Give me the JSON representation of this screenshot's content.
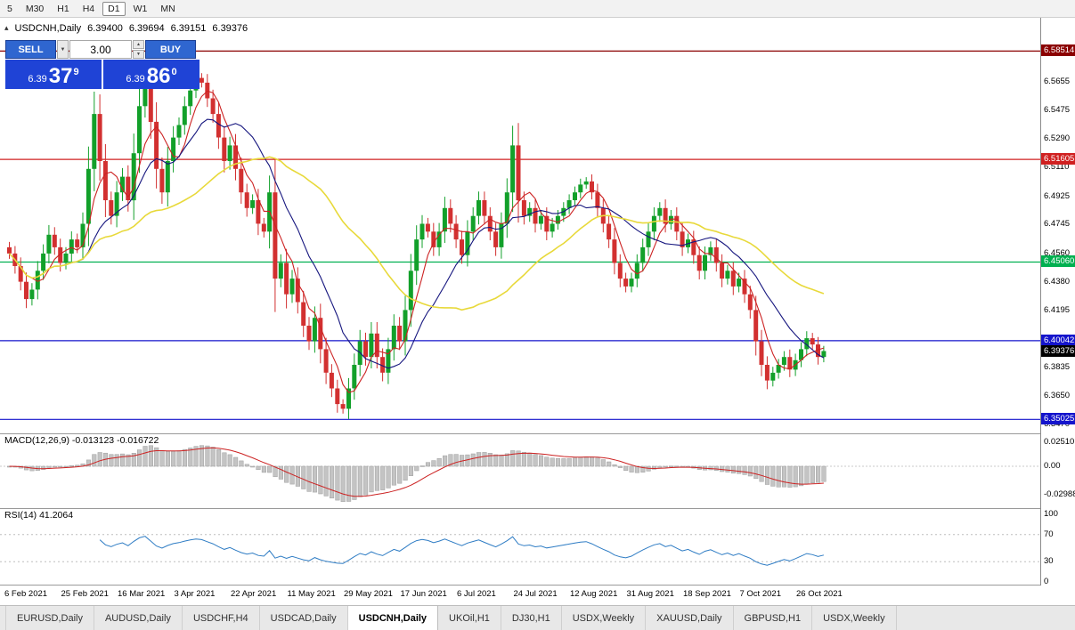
{
  "icons": {
    "collapse": "▴",
    "dropdown": "▼",
    "spin_up": "▲",
    "spin_down": "▼"
  },
  "toolbar": {
    "buttons": [
      "5",
      "M30",
      "H1",
      "H4",
      "D1",
      "W1",
      "MN"
    ],
    "active": "D1"
  },
  "chart": {
    "info": {
      "symbol": "USDCNH,Daily",
      "open": "6.39400",
      "high": "6.39694",
      "low": "6.39151",
      "close": "6.39376"
    },
    "trade_panel": {
      "sell_label": "SELL",
      "buy_label": "BUY",
      "volume": "3.00",
      "sell_price": {
        "base": "6.39",
        "big": "37",
        "sup": "9"
      },
      "buy_price": {
        "base": "6.39",
        "big": "86",
        "sup": "0"
      }
    }
  },
  "macd": {
    "label": "MACD(12,26,9) -0.013123 -0.016722"
  },
  "rsi": {
    "label": "RSI(14) 41.2064"
  },
  "tabs": {
    "items": [
      "EURUSD,Daily",
      "AUDUSD,Daily",
      "USDCHF,H4",
      "USDCAD,Daily",
      "USDCNH,Daily",
      "UKOil,H1",
      "DJ30,H1",
      "USDX,Weekly",
      "XAUUSD,Daily",
      "GBPUSD,H1",
      "USDX,Weekly"
    ],
    "active_index": 4
  },
  "chart_data": {
    "type": "candlestick",
    "title": "USDCNH Daily",
    "x_labels": [
      "6 Feb 2021",
      "25 Feb 2021",
      "16 Mar 2021",
      "3 Apr 2021",
      "22 Apr 2021",
      "11 May 2021",
      "29 May 2021",
      "17 Jun 2021",
      "6 Jul 2021",
      "24 Jul 2021",
      "12 Aug 2021",
      "31 Aug 2021",
      "18 Sep 2021",
      "7 Oct 2021",
      "26 Oct 2021"
    ],
    "x_label_step": 10,
    "closes": [
      6.456,
      6.448,
      6.438,
      6.427,
      6.433,
      6.445,
      6.456,
      6.468,
      6.46,
      6.45,
      6.456,
      6.465,
      6.46,
      6.475,
      6.51,
      6.545,
      6.515,
      6.49,
      6.48,
      6.495,
      6.505,
      6.49,
      6.52,
      6.55,
      6.565,
      6.54,
      6.51,
      6.495,
      6.515,
      6.53,
      6.538,
      6.55,
      6.56,
      6.568,
      6.565,
      6.555,
      6.545,
      6.53,
      6.515,
      6.525,
      6.51,
      6.495,
      6.485,
      6.49,
      6.475,
      6.47,
      6.495,
      6.44,
      6.45,
      6.43,
      6.44,
      6.425,
      6.41,
      6.4,
      6.415,
      6.395,
      6.38,
      6.37,
      6.36,
      6.357,
      6.37,
      6.385,
      6.4,
      6.39,
      6.405,
      6.39,
      6.38,
      6.395,
      6.41,
      6.4,
      6.42,
      6.445,
      6.465,
      6.475,
      6.47,
      6.46,
      6.47,
      6.485,
      6.475,
      6.465,
      6.455,
      6.47,
      6.48,
      6.49,
      6.48,
      6.47,
      6.46,
      6.475,
      6.495,
      6.525,
      6.49,
      6.48,
      6.485,
      6.475,
      6.48,
      6.47,
      6.475,
      6.48,
      6.485,
      6.49,
      6.495,
      6.5,
      6.502,
      6.495,
      6.485,
      6.475,
      6.465,
      6.45,
      6.44,
      6.435,
      6.44,
      6.45,
      6.46,
      6.47,
      6.48,
      6.485,
      6.475,
      6.48,
      6.47,
      6.46,
      6.465,
      6.455,
      6.445,
      6.455,
      6.46,
      6.45,
      6.44,
      6.445,
      6.435,
      6.44,
      6.43,
      6.42,
      6.4,
      6.385,
      6.375,
      6.38,
      6.385,
      6.39,
      6.382,
      6.388,
      6.395,
      6.402,
      6.398,
      6.39,
      6.3938
    ],
    "last_ohlc": {
      "open": 6.394,
      "high": 6.39694,
      "low": 6.39151,
      "close": 6.39376
    },
    "price_axis_ticks": [
      "6.5655",
      "6.5475",
      "6.5290",
      "6.5110",
      "6.4925",
      "6.4745",
      "6.4560",
      "6.4380",
      "6.4195",
      "6.4015",
      "6.3835",
      "6.3650",
      "6.3470"
    ],
    "hlines": [
      {
        "price": 6.58514,
        "label": "6.58514",
        "color": "#8B0000",
        "line": true
      },
      {
        "price": 6.51605,
        "label": "6.51605",
        "color": "#D02020",
        "line": true
      },
      {
        "price": 6.4506,
        "label": "6.45060",
        "color": "#00B050",
        "line": true
      },
      {
        "price": 6.40042,
        "label": "6.40042",
        "color": "#1414CC",
        "line": true
      },
      {
        "price": 6.35025,
        "label": "6.35025",
        "color": "#1414CC",
        "line": true
      },
      {
        "price": 6.39376,
        "label": "6.39376",
        "color": "#000000",
        "line": false
      }
    ],
    "candle_up_color": "#12A02A",
    "candle_down_color": "#D23030",
    "moving_averages": [
      {
        "type": "sma",
        "period": 5,
        "color": "#CC2222"
      },
      {
        "type": "sma",
        "period": 13,
        "color": "#15157E"
      },
      {
        "type": "sma",
        "period": 34,
        "color": "#E8D93A"
      }
    ],
    "macd": {
      "params": [
        12,
        26,
        9
      ],
      "readout": [
        -0.013123,
        -0.016722
      ],
      "axis_ticks": [
        "0.02510",
        "0.00",
        "-0.02988"
      ],
      "hist_color": "#C4C4C4",
      "hist_border": "#9E9E9E",
      "signal_color": "#CC2222"
    },
    "rsi": {
      "period": 14,
      "value": 41.2064,
      "axis_ticks": [
        "100",
        "70",
        "30",
        "0"
      ],
      "levels": [
        70,
        30
      ],
      "color": "#2E7CC4"
    }
  }
}
